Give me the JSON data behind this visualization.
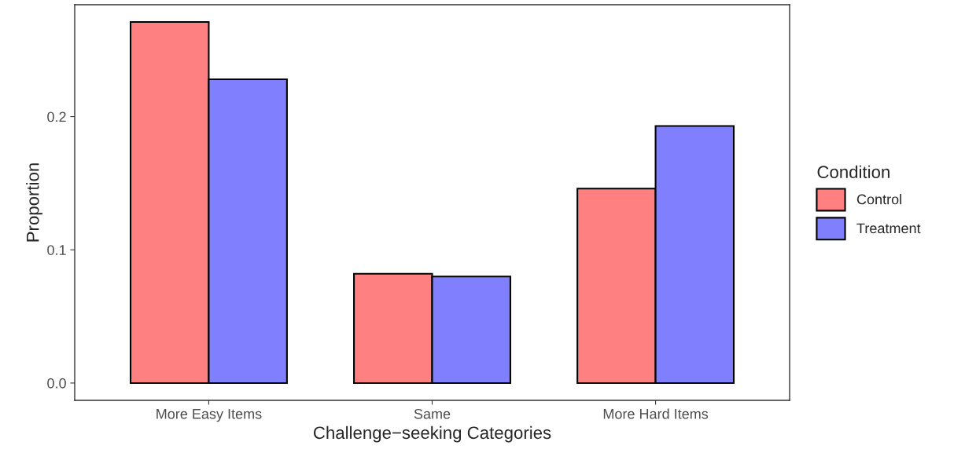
{
  "chart_data": {
    "type": "bar",
    "xlabel": "Challenge−seeking Categories",
    "ylabel": "Proportion",
    "legend_title": "Condition",
    "categories": [
      "More Easy Items",
      "Same",
      "More Hard Items"
    ],
    "series": [
      {
        "name": "Control",
        "color": "#ff8080",
        "values": [
          0.271,
          0.082,
          0.146
        ]
      },
      {
        "name": "Treatment",
        "color": "#8080ff",
        "values": [
          0.228,
          0.08,
          0.193
        ]
      }
    ],
    "ylim": [
      -0.013,
      0.284
    ],
    "yticks": [
      {
        "value": 0,
        "label": "0.0"
      },
      0.1,
      0.2
    ],
    "grid": false,
    "legend": "right"
  }
}
